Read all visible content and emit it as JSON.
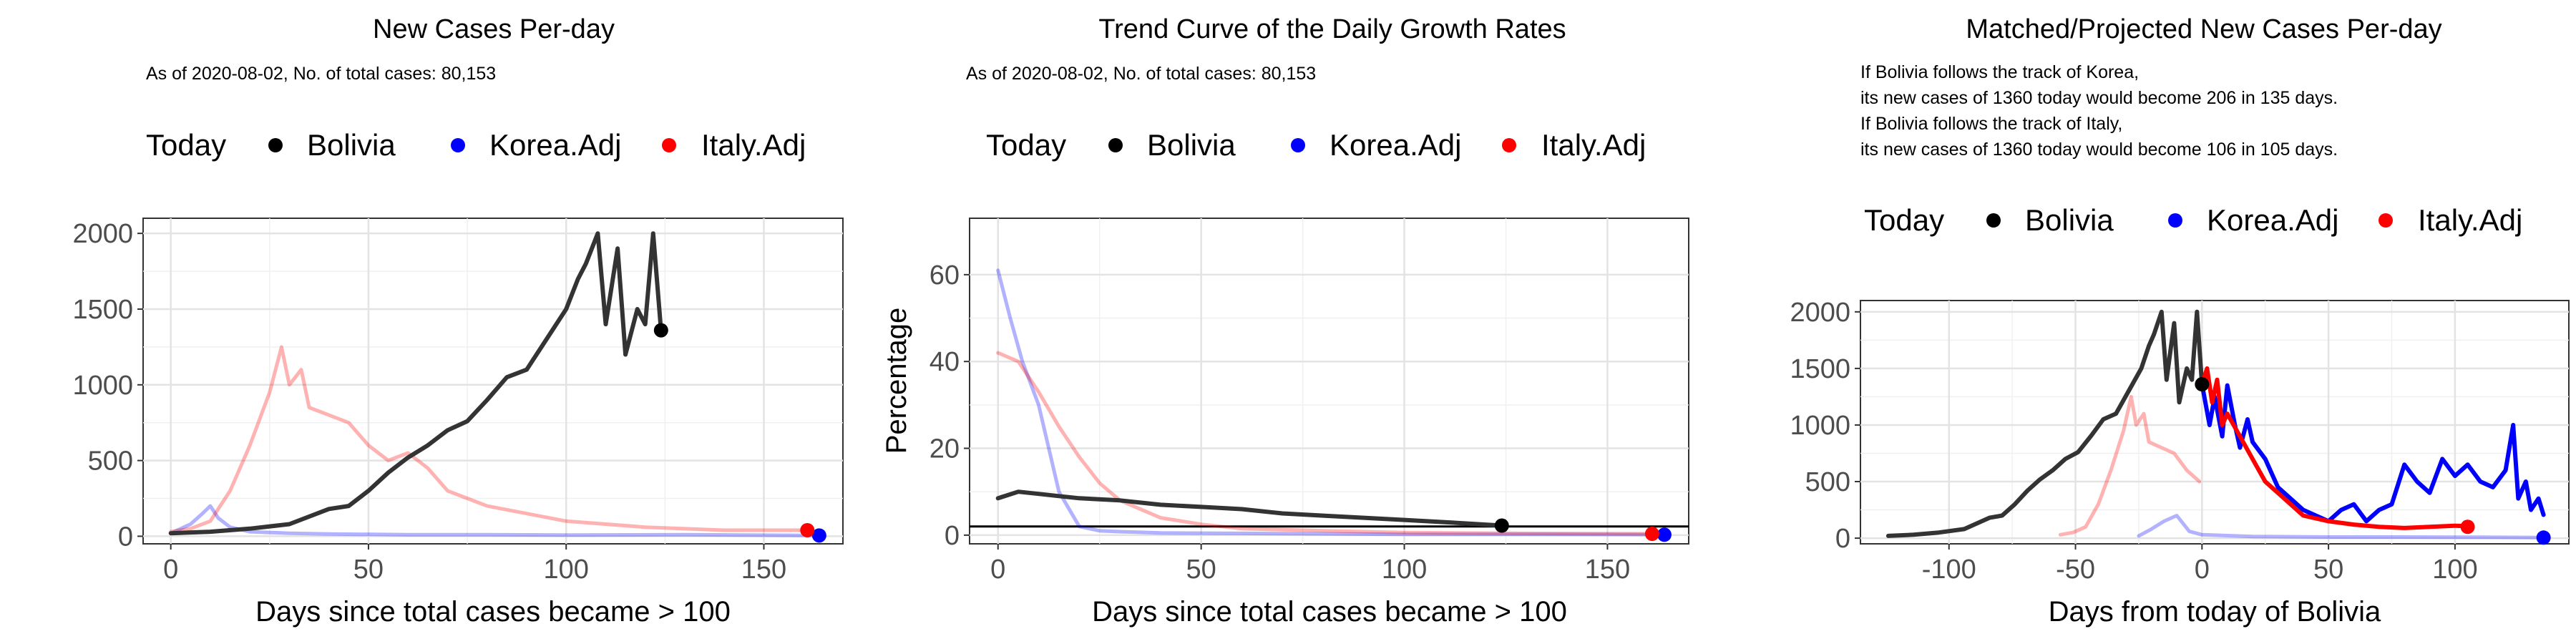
{
  "colors": {
    "bolivia": "#333333",
    "bolivia_point": "#000000",
    "korea": "#0000ff",
    "italy": "#ff0000"
  },
  "chart_data": [
    {
      "type": "line",
      "title": "New Cases Per-day",
      "subtitle": [
        "As of 2020-08-02, No. of total cases: 80,153"
      ],
      "legend": {
        "title": "Today",
        "entries": [
          "Bolivia",
          "Korea.Adj",
          "Italy.Adj"
        ],
        "position": "top"
      },
      "xlabel": "Days since total cases became > 100",
      "ylabel": "",
      "xlim": [
        -7,
        170
      ],
      "ylim": [
        -50,
        2100
      ],
      "xticks": [
        0,
        50,
        100,
        150
      ],
      "yticks": [
        0,
        500,
        1000,
        1500,
        2000
      ],
      "grid": true,
      "series": [
        {
          "name": "Bolivia",
          "role": "main",
          "x": [
            0,
            10,
            20,
            30,
            40,
            45,
            50,
            55,
            60,
            65,
            70,
            75,
            80,
            85,
            90,
            95,
            100,
            103,
            105,
            108,
            110,
            113,
            115,
            118,
            120,
            122,
            124
          ],
          "y": [
            20,
            30,
            50,
            80,
            180,
            200,
            300,
            420,
            520,
            600,
            700,
            760,
            900,
            1050,
            1100,
            1300,
            1500,
            1700,
            1800,
            2000,
            1400,
            1900,
            1200,
            1500,
            1400,
            2000,
            1360
          ]
        },
        {
          "name": "Korea.Adj",
          "role": "faint",
          "x": [
            0,
            5,
            8,
            10,
            12,
            15,
            20,
            30,
            40,
            60,
            80,
            100,
            130,
            164
          ],
          "y": [
            20,
            80,
            150,
            200,
            120,
            60,
            30,
            20,
            15,
            10,
            10,
            8,
            10,
            5
          ]
        },
        {
          "name": "Italy.Adj",
          "role": "faint",
          "x": [
            0,
            5,
            10,
            15,
            20,
            25,
            28,
            30,
            33,
            35,
            40,
            45,
            50,
            55,
            60,
            65,
            70,
            75,
            80,
            90,
            100,
            120,
            140,
            161
          ],
          "y": [
            30,
            50,
            100,
            300,
            600,
            950,
            1250,
            1000,
            1100,
            850,
            800,
            750,
            600,
            500,
            550,
            450,
            300,
            250,
            200,
            150,
            100,
            60,
            40,
            40
          ]
        }
      ],
      "today_points": [
        {
          "name": "Bolivia",
          "x": 124,
          "y": 1360
        },
        {
          "name": "Korea.Adj",
          "x": 164,
          "y": 5
        },
        {
          "name": "Italy.Adj",
          "x": 161,
          "y": 40
        }
      ]
    },
    {
      "type": "line",
      "title": "Trend Curve of the Daily Growth Rates",
      "subtitle": [
        "As of 2020-08-02, No. of total cases: 80,153"
      ],
      "legend": {
        "title": "Today",
        "entries": [
          "Bolivia",
          "Korea.Adj",
          "Italy.Adj"
        ],
        "position": "top"
      },
      "xlabel": "Days since total cases became > 100",
      "ylabel": "Percentage",
      "xlim": [
        -7,
        170
      ],
      "ylim": [
        -2,
        73
      ],
      "xticks": [
        0,
        50,
        100,
        150
      ],
      "yticks": [
        0,
        20,
        40,
        60
      ],
      "grid": true,
      "hline": 2,
      "series": [
        {
          "name": "Bolivia",
          "role": "main",
          "x": [
            0,
            5,
            10,
            15,
            20,
            30,
            40,
            50,
            60,
            70,
            80,
            90,
            100,
            110,
            124
          ],
          "y": [
            8.5,
            10,
            9.5,
            9,
            8.5,
            8,
            7,
            6.5,
            6,
            5,
            4.5,
            4,
            3.5,
            3,
            2.2
          ]
        },
        {
          "name": "Korea.Adj",
          "role": "faint",
          "x": [
            0,
            3,
            6,
            10,
            15,
            20,
            25,
            30,
            40,
            60,
            80,
            100,
            130,
            164
          ],
          "y": [
            61,
            50,
            40,
            30,
            10,
            2,
            1,
            0.8,
            0.5,
            0.4,
            0.3,
            0.2,
            0.2,
            0.1
          ]
        },
        {
          "name": "Italy.Adj",
          "role": "faint",
          "x": [
            0,
            5,
            10,
            15,
            20,
            25,
            30,
            40,
            50,
            60,
            80,
            100,
            130,
            161
          ],
          "y": [
            42,
            40,
            33,
            25,
            18,
            12,
            8,
            4,
            2.5,
            1.5,
            1,
            0.6,
            0.4,
            0.3
          ]
        }
      ],
      "today_points": [
        {
          "name": "Bolivia",
          "x": 124,
          "y": 2.2
        },
        {
          "name": "Korea.Adj",
          "x": 164,
          "y": 0.1
        },
        {
          "name": "Italy.Adj",
          "x": 161,
          "y": 0.3
        }
      ]
    },
    {
      "type": "line",
      "title": "Matched/Projected New Cases Per-day",
      "subtitle": [
        "If Bolivia follows the track of Korea,",
        "its new cases of 1360 today would become 206 in 135 days.",
        "If Bolivia follows the track of Italy,",
        "its new cases of 1360 today would become 106 in 105 days."
      ],
      "legend": {
        "title": "Today",
        "entries": [
          "Bolivia",
          "Korea.Adj",
          "Italy.Adj"
        ],
        "position": "top"
      },
      "xlabel": "Days from today of Bolivia",
      "ylabel": "",
      "xlim": [
        -135,
        145
      ],
      "ylim": [
        -50,
        2100
      ],
      "xticks": [
        -100,
        -50,
        0,
        50,
        100
      ],
      "yticks": [
        0,
        500,
        1000,
        1500,
        2000
      ],
      "grid": true,
      "series": [
        {
          "name": "Bolivia",
          "role": "main",
          "x": [
            -124,
            -114,
            -104,
            -94,
            -84,
            -79,
            -74,
            -69,
            -64,
            -59,
            -54,
            -49,
            -44,
            -39,
            -34,
            -29,
            -24,
            -21,
            -19,
            -16,
            -14,
            -11,
            -9,
            -6,
            -4,
            -2,
            0
          ],
          "y": [
            20,
            30,
            50,
            80,
            180,
            200,
            300,
            420,
            520,
            600,
            700,
            760,
            900,
            1050,
            1100,
            1300,
            1500,
            1700,
            1800,
            2000,
            1400,
            1900,
            1200,
            1500,
            1400,
            2000,
            1360
          ]
        },
        {
          "name": "Korea.Adj",
          "role": "faint",
          "x": [
            -25,
            -20,
            -15,
            -10,
            -5,
            0,
            20,
            50,
            80,
            110,
            135
          ],
          "y": [
            20,
            80,
            150,
            200,
            60,
            30,
            15,
            10,
            10,
            8,
            5
          ]
        },
        {
          "name": "Italy.Adj",
          "role": "faint",
          "x": [
            -56,
            -51,
            -46,
            -41,
            -36,
            -31,
            -28,
            -26,
            -23,
            -21,
            -16,
            -11,
            -6,
            -1
          ],
          "y": [
            30,
            50,
            100,
            300,
            600,
            950,
            1250,
            1000,
            1100,
            850,
            800,
            750,
            600,
            500
          ]
        },
        {
          "name": "Korea.Adj",
          "role": "projected",
          "x": [
            0,
            3,
            5,
            8,
            10,
            13,
            15,
            18,
            20,
            25,
            30,
            35,
            40,
            45,
            50,
            55,
            60,
            65,
            70,
            75,
            80,
            85,
            90,
            95,
            100,
            105,
            110,
            115,
            120,
            123,
            125,
            128,
            130,
            133,
            135
          ],
          "y": [
            1360,
            1000,
            1250,
            900,
            1350,
            1000,
            800,
            1050,
            850,
            700,
            450,
            350,
            250,
            200,
            150,
            250,
            300,
            150,
            250,
            300,
            650,
            500,
            400,
            700,
            550,
            650,
            500,
            450,
            600,
            1000,
            350,
            500,
            250,
            350,
            206
          ]
        },
        {
          "name": "Italy.Adj",
          "role": "projected",
          "x": [
            0,
            2,
            4,
            6,
            8,
            10,
            15,
            20,
            25,
            30,
            35,
            40,
            50,
            60,
            70,
            80,
            90,
            100,
            105
          ],
          "y": [
            1360,
            1500,
            1200,
            1400,
            1000,
            1100,
            900,
            700,
            500,
            400,
            300,
            200,
            150,
            120,
            100,
            90,
            100,
            110,
            106
          ]
        }
      ],
      "today_points": [
        {
          "name": "Bolivia",
          "x": 0,
          "y": 1360
        },
        {
          "name": "Korea.Adj",
          "x": 135,
          "y": 5
        },
        {
          "name": "Italy.Adj",
          "x": 105,
          "y": 100
        }
      ]
    }
  ]
}
